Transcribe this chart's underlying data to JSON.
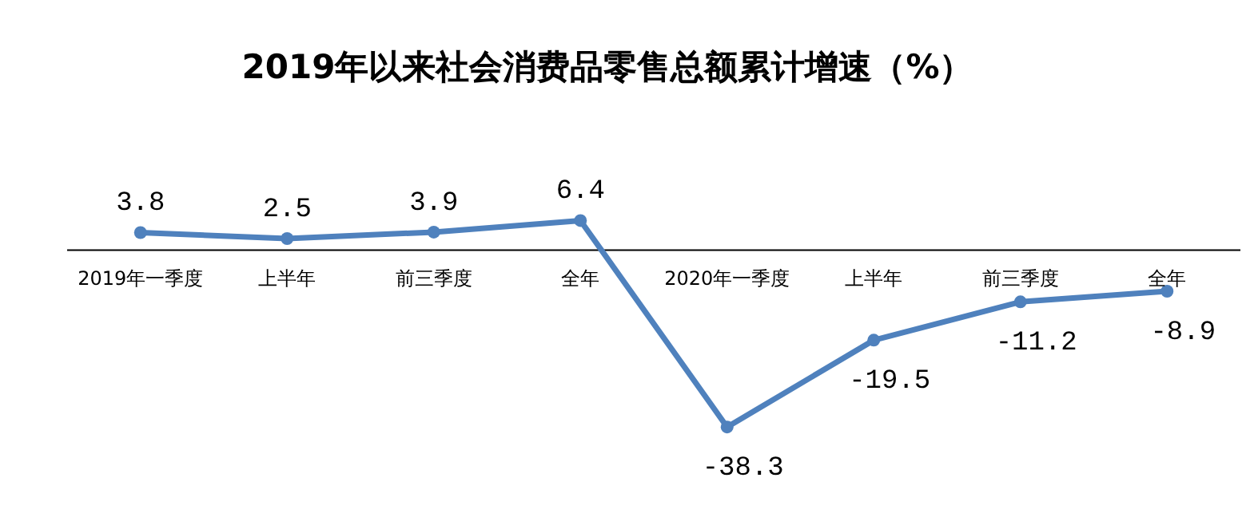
{
  "chart_data": {
    "type": "line",
    "title": "2019年以来社会消费品零售总额累计增速（%）",
    "categories": [
      "2019年一季度",
      "上半年",
      "前三季度",
      "全年",
      "2020年一季度",
      "上半年",
      "前三季度",
      "全年"
    ],
    "series": [
      {
        "color": "#4f81bd",
        "values": [
          3.8,
          2.5,
          3.9,
          6.4,
          -38.3,
          -19.5,
          -11.2,
          -8.9
        ]
      }
    ],
    "marker": "circle",
    "data_labels": true
  }
}
